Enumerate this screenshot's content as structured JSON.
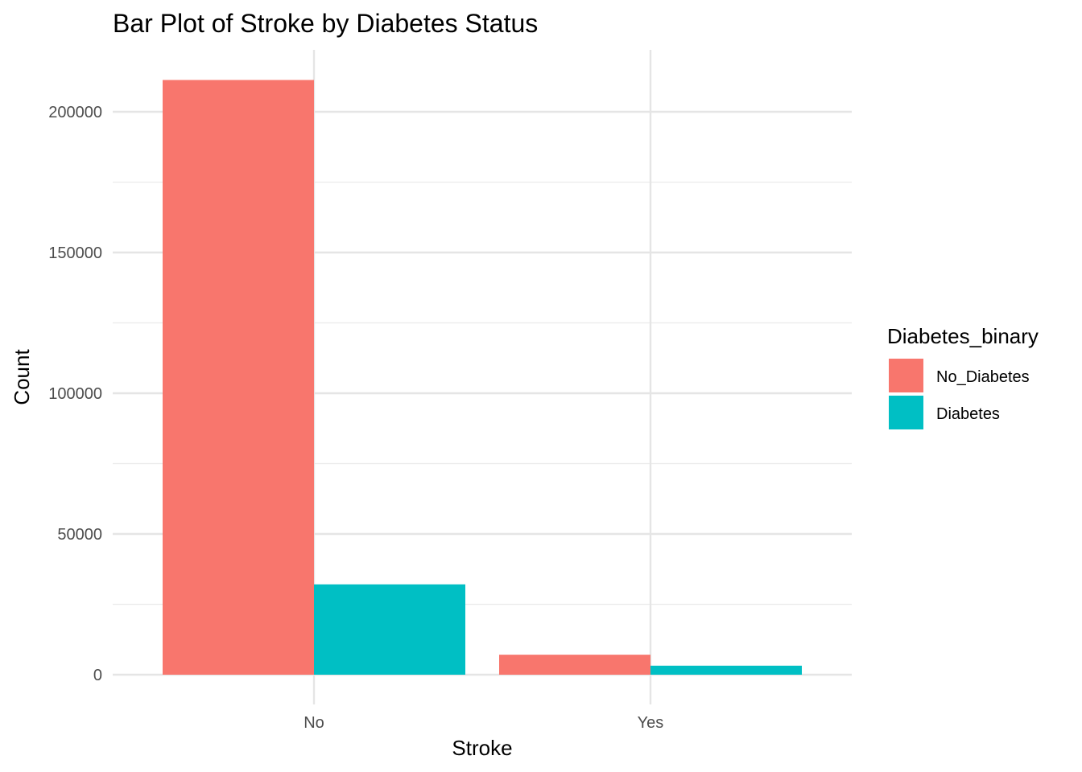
{
  "chart_data": {
    "type": "bar",
    "title": "Bar Plot of Stroke by Diabetes Status",
    "xlabel": "Stroke",
    "ylabel": "Count",
    "categories": [
      "No",
      "Yes"
    ],
    "ylim": [
      0,
      220000
    ],
    "y_ticks": [
      0,
      50000,
      100000,
      150000,
      200000
    ],
    "y_tick_labels": [
      "0",
      "50000",
      "100000",
      "150000",
      "200000"
    ],
    "grid": true,
    "legend_placement": "right",
    "legend_title": "Diabetes_binary",
    "series": [
      {
        "name": "No_Diabetes",
        "color": "#F8766D",
        "values": [
          211300,
          7100
        ]
      },
      {
        "name": "Diabetes",
        "color": "#00BFC4",
        "values": [
          32100,
          3200
        ]
      }
    ]
  }
}
